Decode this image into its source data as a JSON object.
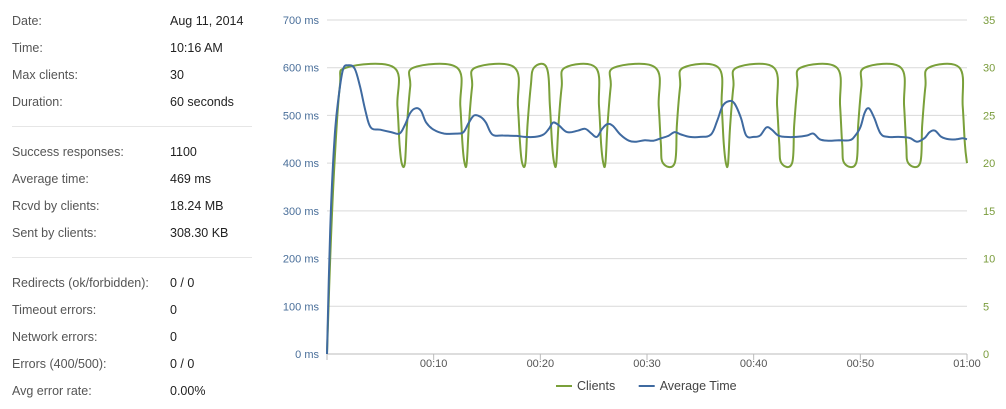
{
  "stats": {
    "groups": [
      [
        {
          "label": "Date:",
          "value": "Aug 11, 2014"
        },
        {
          "label": "Time:",
          "value": "10:16 AM"
        },
        {
          "label": "Max clients:",
          "value": "30"
        },
        {
          "label": "Duration:",
          "value": "60 seconds"
        }
      ],
      [
        {
          "label": "Success responses:",
          "value": "1100"
        },
        {
          "label": "Average time:",
          "value": "469 ms"
        },
        {
          "label": "Rcvd by clients:",
          "value": "18.24 MB"
        },
        {
          "label": "Sent by clients:",
          "value": "308.30 KB"
        }
      ],
      [
        {
          "label": "Redirects (ok/forbidden):",
          "value": "0 / 0"
        },
        {
          "label": "Timeout errors:",
          "value": "0"
        },
        {
          "label": "Network errors:",
          "value": "0"
        },
        {
          "label": "Errors (400/500):",
          "value": "0 / 0"
        },
        {
          "label": "Avg error rate:",
          "value": "0.00%"
        }
      ]
    ]
  },
  "chart_data": {
    "type": "line",
    "x_range": [
      0,
      60
    ],
    "x_unit": "seconds",
    "x_tick_values": [
      10,
      20,
      30,
      40,
      50,
      60
    ],
    "x_tick_labels": [
      "00:10",
      "00:20",
      "00:30",
      "00:40",
      "00:50",
      "01:00"
    ],
    "y_left": {
      "range": [
        0,
        700
      ],
      "ticks": [
        0,
        100,
        200,
        300,
        400,
        500,
        600,
        700
      ],
      "tick_labels": [
        "0 ms",
        "100 ms",
        "200 ms",
        "300 ms",
        "400 ms",
        "500 ms",
        "600 ms",
        "700 ms"
      ]
    },
    "y_right": {
      "range": [
        0,
        35
      ],
      "ticks": [
        0,
        5,
        10,
        15,
        20,
        25,
        30,
        35
      ],
      "tick_labels": [
        "0",
        "5",
        "10",
        "15",
        "20",
        "25",
        "30",
        "35"
      ]
    },
    "grid": true,
    "legend_position": "bottom-center",
    "series": [
      {
        "name": "Clients",
        "axis": "right",
        "color": "#7aa03a",
        "points": [
          [
            0,
            0
          ],
          [
            0.3,
            10
          ],
          [
            0.7,
            20
          ],
          [
            1.2,
            28
          ],
          [
            1.8,
            30
          ],
          [
            6.3,
            30
          ],
          [
            6.6,
            26
          ],
          [
            6.8,
            22
          ],
          [
            7.0,
            20
          ],
          [
            7.3,
            20
          ],
          [
            7.5,
            24
          ],
          [
            7.8,
            28
          ],
          [
            8.1,
            30
          ],
          [
            12.2,
            30
          ],
          [
            12.5,
            26
          ],
          [
            12.7,
            22
          ],
          [
            12.9,
            20
          ],
          [
            13.1,
            20
          ],
          [
            13.3,
            24
          ],
          [
            13.6,
            28
          ],
          [
            13.9,
            30
          ],
          [
            17.6,
            30
          ],
          [
            17.9,
            26
          ],
          [
            18.1,
            22
          ],
          [
            18.3,
            20
          ],
          [
            18.6,
            20
          ],
          [
            18.8,
            24
          ],
          [
            19.1,
            28
          ],
          [
            19.4,
            30
          ],
          [
            20.6,
            30
          ],
          [
            20.9,
            26
          ],
          [
            21.1,
            22
          ],
          [
            21.3,
            20
          ],
          [
            21.5,
            20
          ],
          [
            21.7,
            24
          ],
          [
            22.0,
            28
          ],
          [
            22.3,
            30
          ],
          [
            25.2,
            30
          ],
          [
            25.5,
            26
          ],
          [
            25.7,
            22
          ],
          [
            25.9,
            20
          ],
          [
            26.1,
            20
          ],
          [
            26.3,
            24
          ],
          [
            26.6,
            28
          ],
          [
            26.9,
            30
          ],
          [
            30.8,
            30
          ],
          [
            31.1,
            26
          ],
          [
            31.3,
            22
          ],
          [
            31.5,
            20
          ],
          [
            32.6,
            20
          ],
          [
            32.8,
            24
          ],
          [
            33.1,
            28
          ],
          [
            33.4,
            30
          ],
          [
            36.7,
            30
          ],
          [
            37.0,
            26
          ],
          [
            37.2,
            22
          ],
          [
            37.4,
            20
          ],
          [
            37.6,
            20
          ],
          [
            37.8,
            24
          ],
          [
            38.1,
            28
          ],
          [
            38.4,
            30
          ],
          [
            41.9,
            30
          ],
          [
            42.2,
            26
          ],
          [
            42.4,
            22
          ],
          [
            42.6,
            20
          ],
          [
            43.6,
            20
          ],
          [
            43.8,
            24
          ],
          [
            44.1,
            28
          ],
          [
            44.4,
            30
          ],
          [
            47.8,
            30
          ],
          [
            48.1,
            26
          ],
          [
            48.3,
            22
          ],
          [
            48.5,
            20
          ],
          [
            49.6,
            20
          ],
          [
            49.8,
            24
          ],
          [
            50.1,
            28
          ],
          [
            50.4,
            30
          ],
          [
            53.8,
            30
          ],
          [
            54.1,
            26
          ],
          [
            54.3,
            22
          ],
          [
            54.5,
            20
          ],
          [
            55.6,
            20
          ],
          [
            55.8,
            24
          ],
          [
            56.1,
            28
          ],
          [
            56.4,
            30
          ],
          [
            59.3,
            30
          ],
          [
            59.6,
            26
          ],
          [
            59.8,
            22
          ],
          [
            60,
            20
          ]
        ]
      },
      {
        "name": "Average Time",
        "axis": "left",
        "color": "#3f6aa0",
        "points": [
          [
            0,
            0
          ],
          [
            0.3,
            260
          ],
          [
            0.7,
            450
          ],
          [
            1.1,
            540
          ],
          [
            1.5,
            596
          ],
          [
            2.0,
            605
          ],
          [
            2.6,
            598
          ],
          [
            3.1,
            560
          ],
          [
            3.6,
            510
          ],
          [
            4.1,
            475
          ],
          [
            5.0,
            470
          ],
          [
            6.0,
            465
          ],
          [
            6.8,
            462
          ],
          [
            7.3,
            480
          ],
          [
            7.8,
            505
          ],
          [
            8.3,
            515
          ],
          [
            8.8,
            510
          ],
          [
            9.3,
            485
          ],
          [
            10.0,
            470
          ],
          [
            11.0,
            462
          ],
          [
            12.2,
            462
          ],
          [
            12.8,
            465
          ],
          [
            13.3,
            485
          ],
          [
            13.8,
            500
          ],
          [
            14.4,
            497
          ],
          [
            14.9,
            485
          ],
          [
            15.5,
            460
          ],
          [
            16.5,
            458
          ],
          [
            17.8,
            457
          ],
          [
            18.5,
            455
          ],
          [
            19.5,
            455
          ],
          [
            20.3,
            460
          ],
          [
            20.8,
            472
          ],
          [
            21.2,
            485
          ],
          [
            21.7,
            480
          ],
          [
            22.5,
            465
          ],
          [
            23.5,
            468
          ],
          [
            24.2,
            472
          ],
          [
            24.8,
            462
          ],
          [
            25.3,
            455
          ],
          [
            25.8,
            472
          ],
          [
            26.3,
            482
          ],
          [
            26.8,
            478
          ],
          [
            27.5,
            460
          ],
          [
            28.3,
            447
          ],
          [
            29.0,
            445
          ],
          [
            29.8,
            448
          ],
          [
            30.6,
            447
          ],
          [
            31.3,
            452
          ],
          [
            32.0,
            457
          ],
          [
            32.6,
            465
          ],
          [
            33.2,
            460
          ],
          [
            34.0,
            455
          ],
          [
            35.0,
            455
          ],
          [
            36.0,
            460
          ],
          [
            36.6,
            490
          ],
          [
            37.1,
            520
          ],
          [
            37.7,
            530
          ],
          [
            38.2,
            525
          ],
          [
            38.8,
            495
          ],
          [
            39.3,
            458
          ],
          [
            40.0,
            455
          ],
          [
            40.6,
            458
          ],
          [
            41.2,
            475
          ],
          [
            41.7,
            470
          ],
          [
            42.3,
            458
          ],
          [
            43.0,
            455
          ],
          [
            44.0,
            455
          ],
          [
            45.0,
            458
          ],
          [
            45.6,
            462
          ],
          [
            46.2,
            450
          ],
          [
            47.0,
            447
          ],
          [
            48.0,
            448
          ],
          [
            49.0,
            448
          ],
          [
            49.5,
            457
          ],
          [
            50.0,
            475
          ],
          [
            50.4,
            505
          ],
          [
            50.8,
            515
          ],
          [
            51.3,
            495
          ],
          [
            51.9,
            462
          ],
          [
            52.6,
            455
          ],
          [
            53.6,
            455
          ],
          [
            54.6,
            453
          ],
          [
            55.3,
            445
          ],
          [
            56.0,
            452
          ],
          [
            56.5,
            465
          ],
          [
            57.0,
            468
          ],
          [
            57.6,
            455
          ],
          [
            58.3,
            450
          ],
          [
            59.0,
            450
          ],
          [
            59.6,
            452
          ],
          [
            60,
            450
          ]
        ]
      }
    ]
  }
}
